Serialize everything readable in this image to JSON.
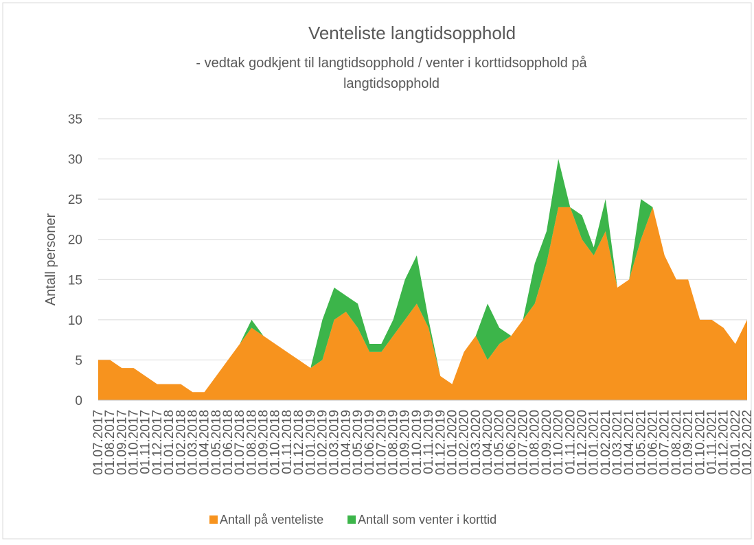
{
  "chart_data": {
    "type": "stacked_area",
    "title": "Venteliste langtidsopphold",
    "subtitle": "- vedtak godkjent til langtidsopphold / venter i korttidsopphold på langtidsopphold",
    "y_label": "Antall personer",
    "categories": [
      "01.07.2017",
      "01.08.2017",
      "01.09.2017",
      "01.10.2017",
      "01.11.2017",
      "01.12.2017",
      "01.01.2018",
      "01.02.2018",
      "01.03.2018",
      "01.04.2018",
      "01.05.2018",
      "01.06.2018",
      "01.07.2018",
      "01.08.2018",
      "01.09.2018",
      "01.10.2018",
      "01.11.2018",
      "01.12.2018",
      "01.01.2019",
      "01.02.2019",
      "01.03.2019",
      "01.04.2019",
      "01.05.2019",
      "01.06.2019",
      "01.07.2019",
      "01.08.2019",
      "01.09.2019",
      "01.10.2019",
      "01.11.2019",
      "01.12.2019",
      "01.01.2020",
      "01.02.2020",
      "01.03.2020",
      "01.04.2020",
      "01.05.2020",
      "01.06.2020",
      "01.07.2020",
      "01.08.2020",
      "01.09.2020",
      "01.10.2020",
      "01.11.2020",
      "01.12.2020",
      "01.01.2021",
      "01.02.2021",
      "01.03.2021",
      "01.04.2021",
      "01.05.2021",
      "01.06.2021",
      "01.07.2021",
      "01.08.2021",
      "01.09.2021",
      "01.10.2021",
      "01.11.2021",
      "01.12.2021",
      "01.01.2022",
      "01.02.2022"
    ],
    "series": [
      {
        "name": "Antall på venteliste",
        "color": "#f7931e",
        "values": [
          5,
          5,
          4,
          4,
          3,
          2,
          2,
          2,
          1,
          1,
          3,
          5,
          7,
          9,
          8,
          7,
          6,
          5,
          4,
          5,
          10,
          11,
          9,
          6,
          6,
          8,
          10,
          12,
          9,
          3,
          2,
          6,
          8,
          5,
          7,
          8,
          10,
          12,
          17,
          24,
          24,
          20,
          18,
          21,
          14,
          15,
          20,
          24,
          18,
          15,
          15,
          10,
          10,
          9,
          7,
          10
        ]
      },
      {
        "name": "Antall som venter i korttid",
        "color": "#3cb54a",
        "values": [
          0,
          0,
          0,
          0,
          0,
          0,
          0,
          0,
          0,
          0,
          0,
          0,
          0,
          1,
          0,
          0,
          0,
          0,
          0,
          5,
          4,
          2,
          3,
          1,
          1,
          2,
          5,
          6,
          1,
          0,
          0,
          0,
          0,
          7,
          2,
          0,
          0,
          5,
          4,
          6,
          0,
          3,
          1,
          4,
          0,
          0,
          5,
          0,
          0,
          0,
          0,
          0,
          0,
          0,
          0,
          0
        ]
      }
    ],
    "ylim": [
      0,
      35
    ],
    "yticks": [
      0,
      5,
      10,
      15,
      20,
      25,
      30,
      35
    ],
    "grid": true,
    "legend": "bottom"
  }
}
